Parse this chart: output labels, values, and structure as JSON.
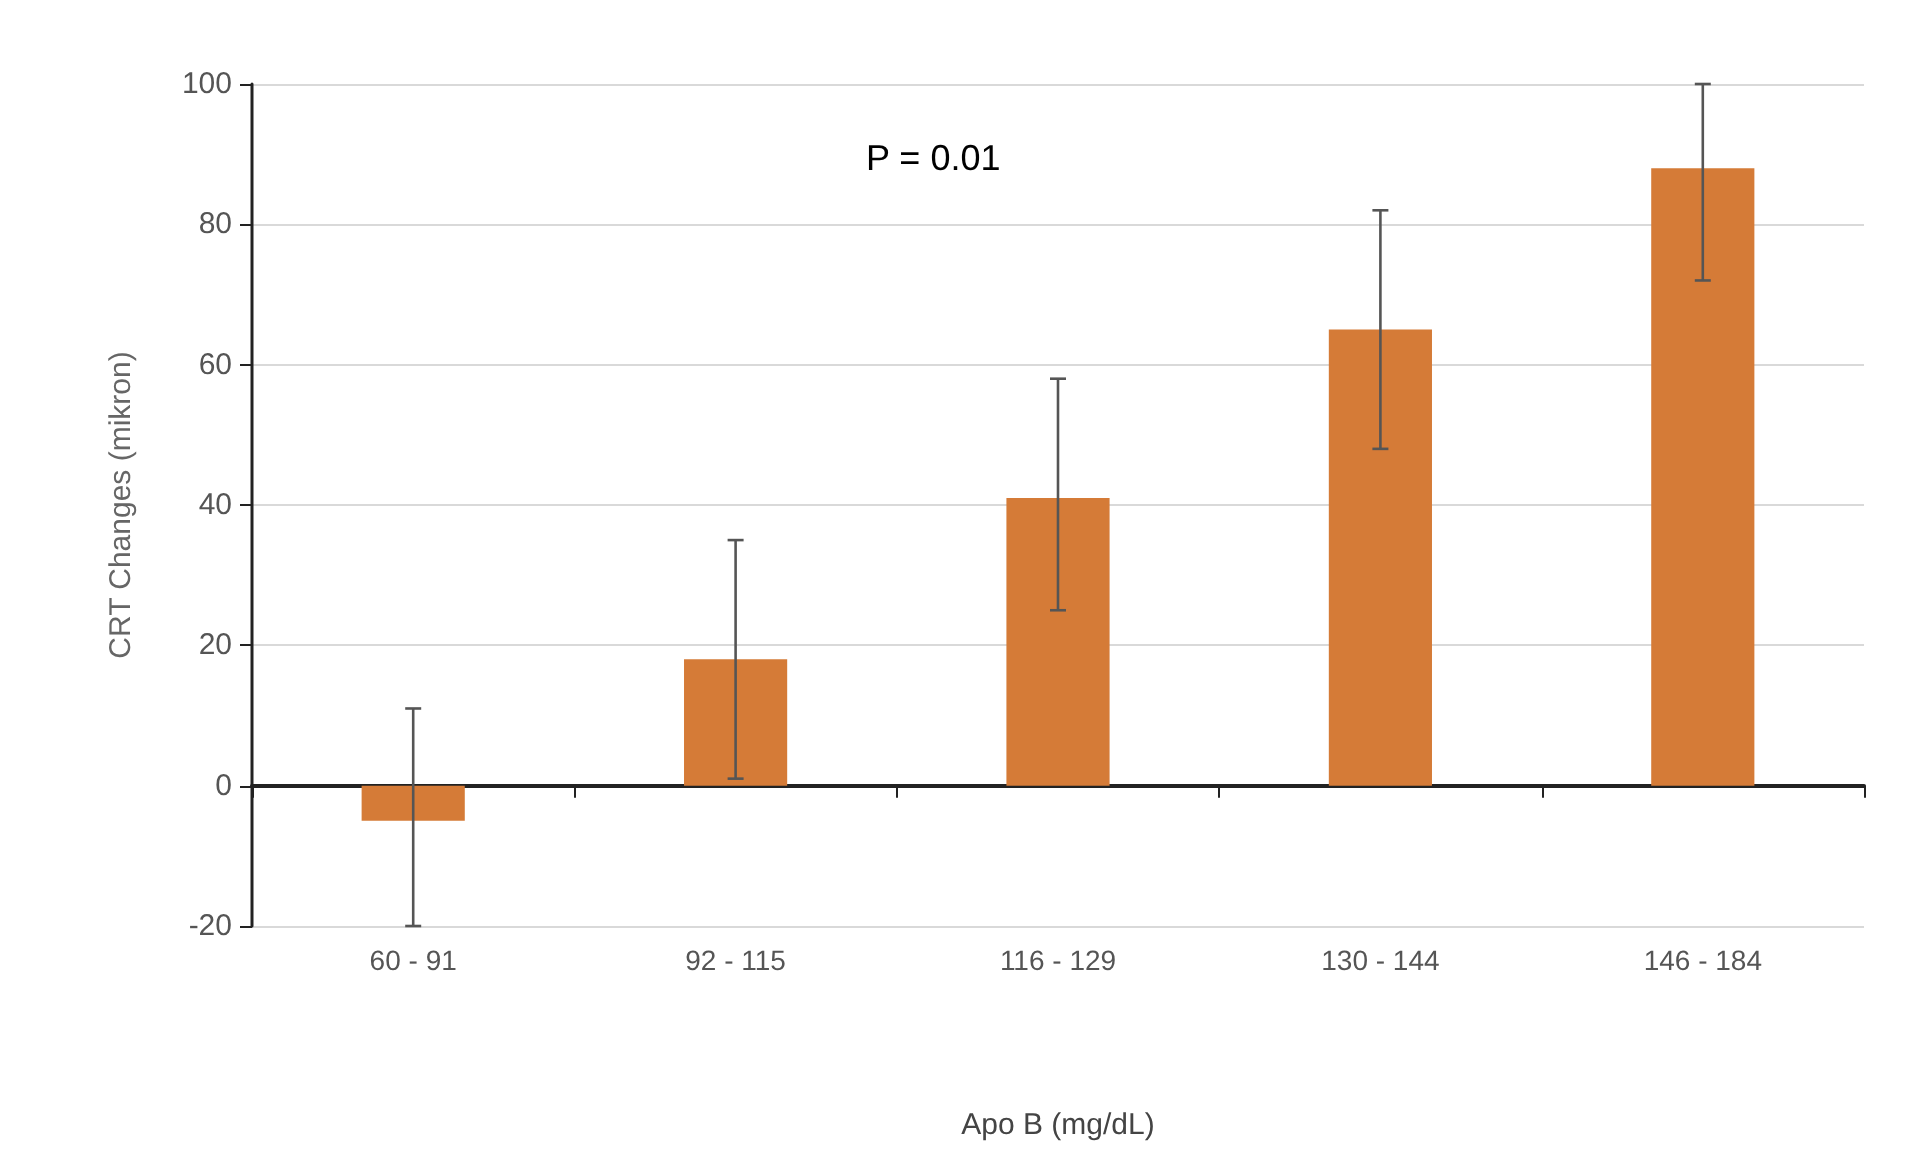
{
  "chart_data": {
    "type": "bar",
    "categories": [
      "60 - 91",
      "92 - 115",
      "116 - 129",
      "130 - 144",
      "146 - 184"
    ],
    "values": [
      -5,
      18,
      41,
      65,
      88
    ],
    "errors": [
      [
        -20,
        11
      ],
      [
        1,
        35
      ],
      [
        25,
        58
      ],
      [
        48,
        82
      ],
      [
        72,
        100
      ]
    ],
    "color": "#d57b37",
    "xlabel": "Apo B (mg/dL)",
    "ylabel": "CRT Changes (mikron)",
    "annotations": [
      "P = 0.01"
    ],
    "ylim": [
      -20,
      100
    ],
    "yticks": [
      -20,
      0,
      20,
      40,
      60,
      80,
      100
    ],
    "grid": "y"
  }
}
